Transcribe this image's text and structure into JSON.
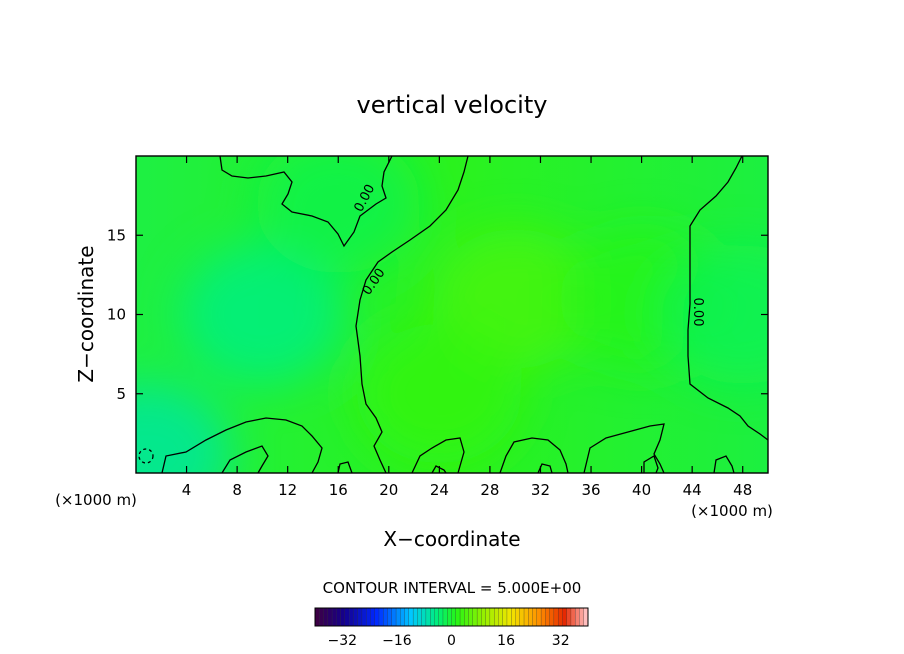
{
  "chart_data": {
    "type": "heatmap",
    "title": "vertical velocity",
    "xlabel": "X−coordinate",
    "ylabel": "Z−coordinate",
    "x_unit_left": "(×1000 m)",
    "x_unit_right": "(×1000 m)",
    "xlim": [
      0,
      50
    ],
    "ylim": [
      0,
      20
    ],
    "xticks": [
      4,
      8,
      12,
      16,
      20,
      24,
      28,
      32,
      36,
      40,
      44,
      48
    ],
    "xtick_labels": [
      "4",
      "8",
      "12",
      "16",
      "20",
      "24",
      "28",
      "32",
      "36",
      "40",
      "44",
      "48"
    ],
    "yticks": [
      5,
      10,
      15
    ],
    "ytick_labels": [
      "5",
      "10",
      "15"
    ],
    "contour_interval_text": "CONTOUR INTERVAL = 5.000E+00",
    "contour_labels": [
      "0.00",
      "0.00",
      "0.00"
    ],
    "colorbar": {
      "range": [
        -40,
        40
      ],
      "ticks": [
        -32,
        -16,
        0,
        16,
        32
      ],
      "tick_labels": [
        "−32",
        "−16",
        "0",
        "16",
        "32"
      ]
    },
    "field_blobs": [
      {
        "x": 10,
        "z": 10,
        "value": -4.5
      },
      {
        "x": 30,
        "z": 11,
        "value": 4.0
      },
      {
        "x": 24,
        "z": 5,
        "value": 2.5
      },
      {
        "x": 40,
        "z": 11,
        "value": 1.5
      },
      {
        "x": 1,
        "z": 1.2,
        "value": -6.0
      },
      {
        "x": 48,
        "z": 10,
        "value": -2.0
      },
      {
        "x": 16,
        "z": 17,
        "value": -1.5
      }
    ],
    "grid": false
  }
}
